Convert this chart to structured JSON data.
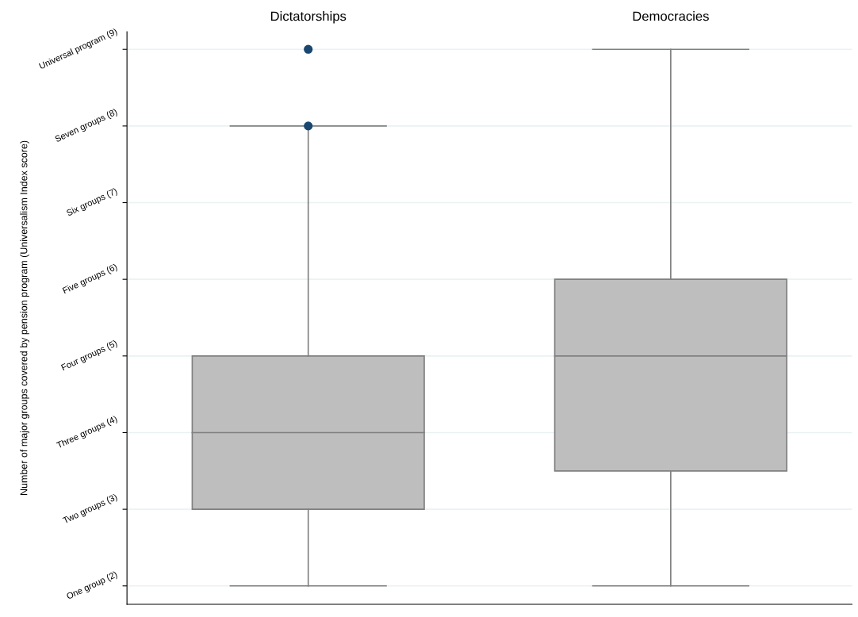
{
  "chart_data": {
    "type": "box",
    "ylabel": "Number of major groups covered by pension program (Universalism Index score)",
    "categories": [
      "Dictatorships",
      "Democracies"
    ],
    "series": [
      {
        "color": "#bebebe",
        "boxes": [
          {
            "low": 2,
            "q1": 3,
            "median": 4,
            "q3": 5,
            "high": 8,
            "outliers": [
              9,
              8
            ]
          },
          {
            "low": 2,
            "q1": 3.5,
            "median": 5,
            "q3": 6,
            "high": 9
          }
        ]
      }
    ],
    "ylim": [
      1.76,
      9.23
    ],
    "yticks": [
      {
        "value": 2,
        "label": "One group (2)"
      },
      {
        "value": 3,
        "label": "Two groups (3)"
      },
      {
        "value": 4,
        "label": "Three groups (4)"
      },
      {
        "value": 5,
        "label": "Four groups (5)"
      },
      {
        "value": 6,
        "label": "Five groups (6)"
      },
      {
        "value": 7,
        "label": "Six groups (7)"
      },
      {
        "value": 8,
        "label": "Seven groups (8)"
      },
      {
        "value": 9,
        "label": "Universal program (9)"
      }
    ],
    "grid": "y"
  }
}
